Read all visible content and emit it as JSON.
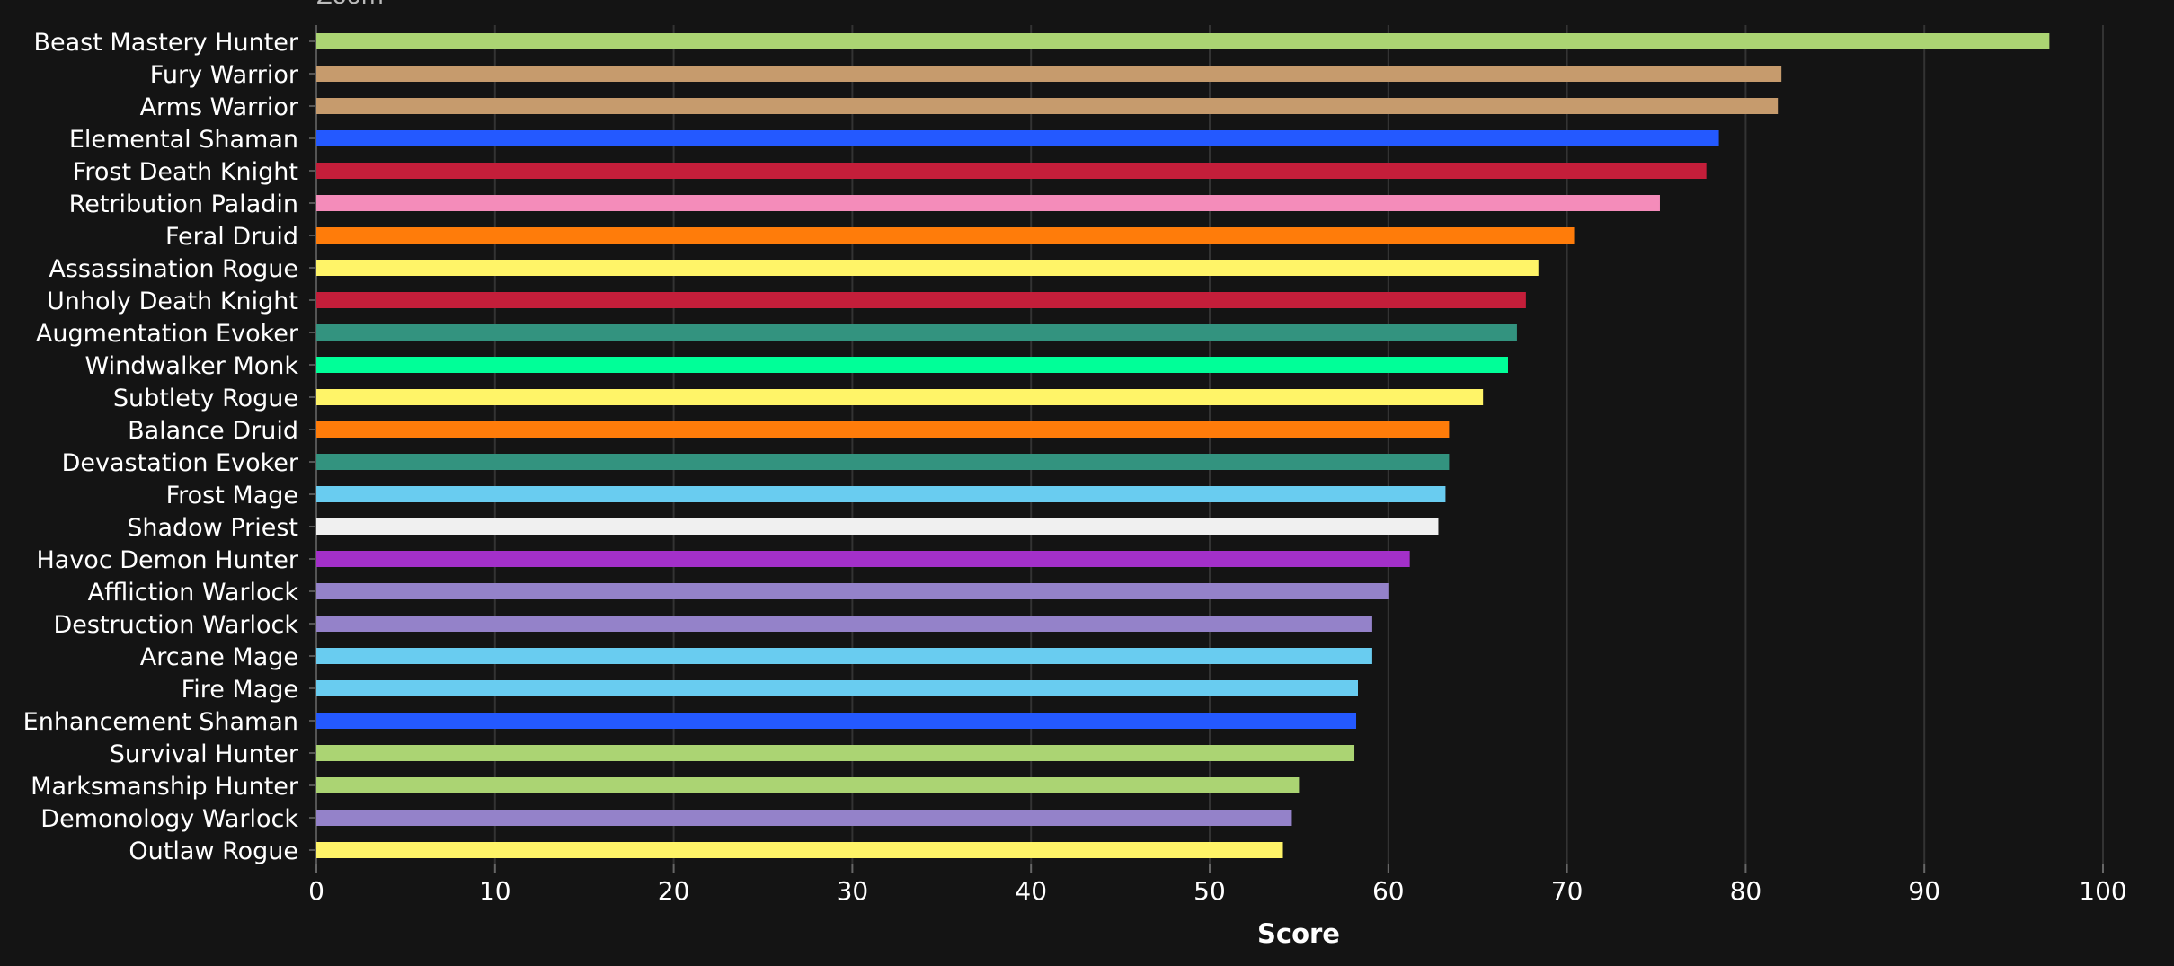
{
  "top_label": "Zoom",
  "chart_data": {
    "type": "bar",
    "orientation": "horizontal",
    "xlabel": "Score",
    "ylabel": "",
    "xlim": [
      0,
      100
    ],
    "x_ticks": [
      0,
      10,
      20,
      30,
      40,
      50,
      60,
      70,
      80,
      90,
      100
    ],
    "grid": "vertical",
    "categories": [
      "Beast Mastery Hunter",
      "Fury Warrior",
      "Arms Warrior",
      "Elemental Shaman",
      "Frost Death Knight",
      "Retribution Paladin",
      "Feral Druid",
      "Assassination Rogue",
      "Unholy Death Knight",
      "Augmentation Evoker",
      "Windwalker Monk",
      "Subtlety Rogue",
      "Balance Druid",
      "Devastation Evoker",
      "Frost Mage",
      "Shadow Priest",
      "Havoc Demon Hunter",
      "Affliction Warlock",
      "Destruction Warlock",
      "Arcane Mage",
      "Fire Mage",
      "Enhancement Shaman",
      "Survival Hunter",
      "Marksmanship Hunter",
      "Demonology Warlock",
      "Outlaw Rogue"
    ],
    "values": [
      97.0,
      82.0,
      81.8,
      78.5,
      77.8,
      75.2,
      70.4,
      68.4,
      67.7,
      67.2,
      66.7,
      65.3,
      63.4,
      63.4,
      63.2,
      62.8,
      61.2,
      60.0,
      59.1,
      59.1,
      58.3,
      58.2,
      58.1,
      55.0,
      54.6,
      54.1
    ],
    "colors": [
      "#abd473",
      "#c69b6d",
      "#c69b6d",
      "#2459ff",
      "#c41e3a",
      "#f48cba",
      "#ff7c0a",
      "#fff468",
      "#c41e3a",
      "#33937f",
      "#00ff98",
      "#fff468",
      "#ff7c0a",
      "#33937f",
      "#69ccf0",
      "#f0f0f0",
      "#a330c9",
      "#9482c9",
      "#9482c9",
      "#69ccf0",
      "#69ccf0",
      "#2459ff",
      "#abd473",
      "#abd473",
      "#9482c9",
      "#fff468"
    ]
  }
}
